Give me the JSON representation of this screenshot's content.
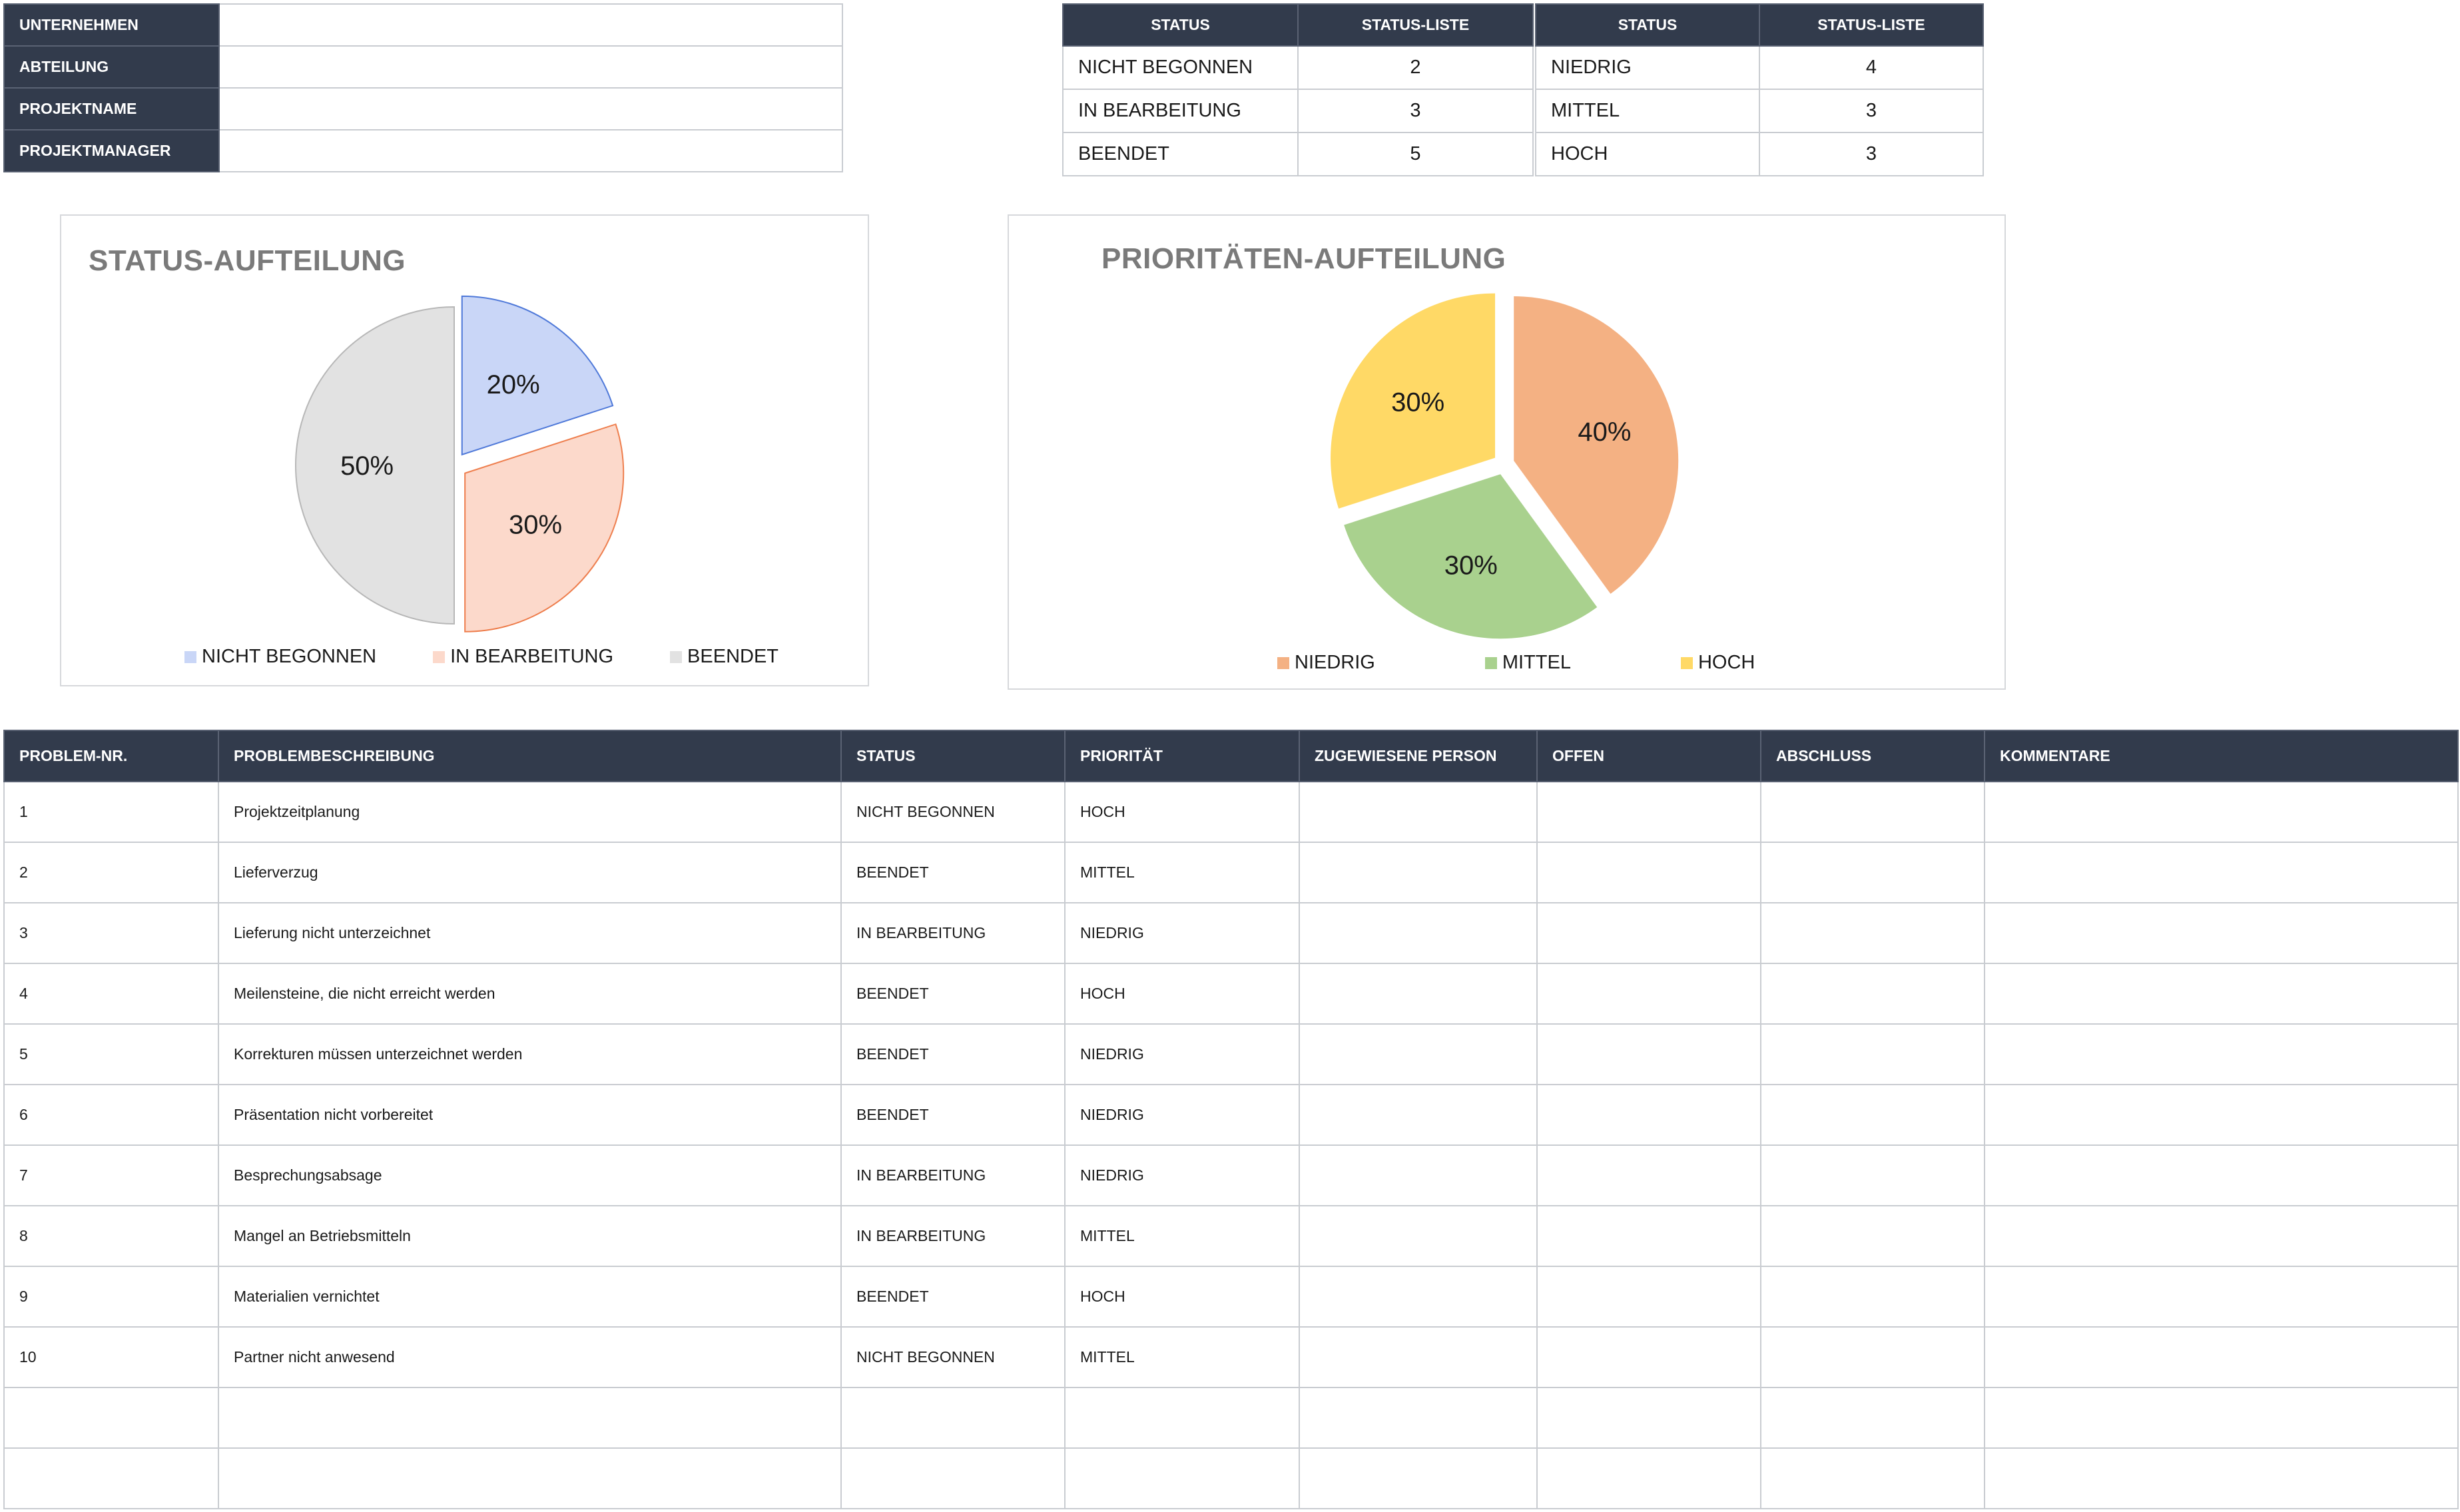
{
  "info": [
    {
      "label": "UNTERNEHMEN",
      "value": ""
    },
    {
      "label": "ABTEILUNG",
      "value": ""
    },
    {
      "label": "PROJEKTNAME",
      "value": ""
    },
    {
      "label": "PROJEKTMANAGER",
      "value": ""
    }
  ],
  "status_summary": {
    "headers": [
      "STATUS",
      "STATUS-LISTE"
    ],
    "rows": [
      {
        "name": "NICHT BEGONNEN",
        "count": "2"
      },
      {
        "name": "IN BEARBEITUNG",
        "count": "3"
      },
      {
        "name": "BEENDET",
        "count": "5"
      }
    ]
  },
  "priority_summary": {
    "headers": [
      "STATUS",
      "STATUS-LISTE"
    ],
    "rows": [
      {
        "name": "NIEDRIG",
        "count": "4"
      },
      {
        "name": "MITTEL",
        "count": "3"
      },
      {
        "name": "HOCH",
        "count": "3"
      }
    ]
  },
  "chart_data": [
    {
      "type": "pie",
      "title": "STATUS-AUFTEILUNG",
      "categories": [
        "NICHT BEGONNEN",
        "IN BEARBEITUNG",
        "BEENDET"
      ],
      "values": [
        20,
        30,
        50
      ],
      "labels": [
        "20%",
        "30%",
        "50%"
      ],
      "colors": [
        "#c9d6f7",
        "#fcd9cb",
        "#e2e2e2"
      ],
      "edge_colors": [
        "#4f79d9",
        "#ee7e4d",
        "#b7b7b7"
      ],
      "legend": "bottom"
    },
    {
      "type": "pie",
      "title": "PRIORITÄTEN-AUFTEILUNG",
      "categories": [
        "NIEDRIG",
        "MITTEL",
        "HOCH"
      ],
      "values": [
        40,
        30,
        30
      ],
      "labels": [
        "40%",
        "30%",
        "30%"
      ],
      "colors": [
        "#f4b183",
        "#a9d18e",
        "#ffd966"
      ],
      "edge_colors": [
        "#f4b183",
        "#a9d18e",
        "#ffd966"
      ],
      "legend": "bottom"
    }
  ],
  "issues": {
    "headers": [
      "PROBLEM-NR.",
      "PROBLEMBESCHREIBUNG",
      "STATUS",
      "PRIORITÄT",
      "ZUGEWIESENE PERSON",
      "OFFEN",
      "ABSCHLUSS",
      "KOMMENTARE"
    ],
    "rows": [
      {
        "nr": "1",
        "desc": "Projektzeitplanung",
        "status": "NICHT BEGONNEN",
        "priority": "HOCH",
        "person": "",
        "open": "",
        "close": "",
        "comment": ""
      },
      {
        "nr": "2",
        "desc": "Lieferverzug",
        "status": "BEENDET",
        "priority": "MITTEL",
        "person": "",
        "open": "",
        "close": "",
        "comment": ""
      },
      {
        "nr": "3",
        "desc": "Lieferung nicht unterzeichnet",
        "status": "IN BEARBEITUNG",
        "priority": "NIEDRIG",
        "person": "",
        "open": "",
        "close": "",
        "comment": ""
      },
      {
        "nr": "4",
        "desc": "Meilensteine, die nicht erreicht werden",
        "status": "BEENDET",
        "priority": "HOCH",
        "person": "",
        "open": "",
        "close": "",
        "comment": ""
      },
      {
        "nr": "5",
        "desc": "Korrekturen müssen unterzeichnet werden",
        "status": "BEENDET",
        "priority": "NIEDRIG",
        "person": "",
        "open": "",
        "close": "",
        "comment": ""
      },
      {
        "nr": "6",
        "desc": "Präsentation nicht vorbereitet",
        "status": "BEENDET",
        "priority": "NIEDRIG",
        "person": "",
        "open": "",
        "close": "",
        "comment": ""
      },
      {
        "nr": "7",
        "desc": "Besprechungsabsage",
        "status": "IN BEARBEITUNG",
        "priority": "NIEDRIG",
        "person": "",
        "open": "",
        "close": "",
        "comment": ""
      },
      {
        "nr": "8",
        "desc": "Mangel an Betriebsmitteln",
        "status": "IN BEARBEITUNG",
        "priority": "MITTEL",
        "person": "",
        "open": "",
        "close": "",
        "comment": ""
      },
      {
        "nr": "9",
        "desc": "Materialien vernichtet",
        "status": "BEENDET",
        "priority": "HOCH",
        "person": "",
        "open": "",
        "close": "",
        "comment": ""
      },
      {
        "nr": "10",
        "desc": "Partner nicht anwesend",
        "status": "NICHT BEGONNEN",
        "priority": "MITTEL",
        "person": "",
        "open": "",
        "close": "",
        "comment": ""
      },
      {
        "nr": "",
        "desc": "",
        "status": "",
        "priority": "",
        "person": "",
        "open": "",
        "close": "",
        "comment": ""
      },
      {
        "nr": "",
        "desc": "",
        "status": "",
        "priority": "",
        "person": "",
        "open": "",
        "close": "",
        "comment": ""
      }
    ]
  }
}
